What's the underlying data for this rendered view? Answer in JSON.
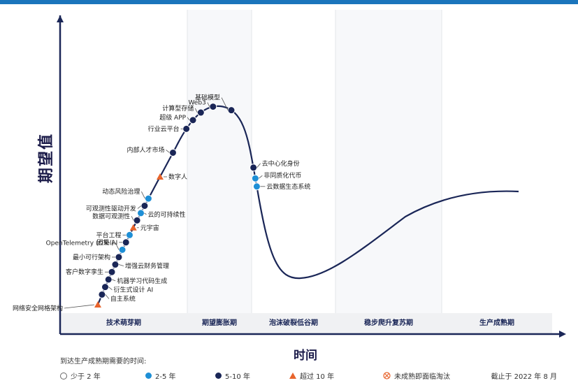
{
  "chart_data": {
    "type": "line",
    "title": "",
    "ylabel": "期望值",
    "xlabel": "时间",
    "phases": [
      "技术萌芽期",
      "期望膨胀期",
      "泡沫破裂低谷期",
      "稳步爬升复苏期",
      "生产成熟期"
    ],
    "legend": {
      "title": "到达生产成熟期需要的时间:",
      "items": [
        {
          "key": "lt2",
          "label": "少于 2 年",
          "color": "#ffffff"
        },
        {
          "key": "2to5",
          "label": "2-5 年",
          "color": "#1e8fd6"
        },
        {
          "key": "5to10",
          "label": "5-10 年",
          "color": "#1a2657"
        },
        {
          "key": "gt10",
          "label": "超过 10 年",
          "color": "#e8642c"
        },
        {
          "key": "obsolete",
          "label": "未成熟即面临淘汰",
          "color": "#e8642c"
        }
      ],
      "as_of": "截止于 2022 年 8 月"
    },
    "technologies": [
      {
        "name": "网络安全网格架构",
        "t": 0.0,
        "category": "gt10"
      },
      {
        "name": "自主系统",
        "t": 0.04,
        "category": "5to10"
      },
      {
        "name": "衍生式设计 AI",
        "t": 0.07,
        "category": "5to10"
      },
      {
        "name": "机器学习代码生成",
        "t": 0.1,
        "category": "5to10"
      },
      {
        "name": "客户数字孪生",
        "t": 0.13,
        "category": "5to10"
      },
      {
        "name": "增强云财务管理",
        "t": 0.16,
        "category": "5to10"
      },
      {
        "name": "最小可行架构",
        "t": 0.19,
        "category": "5to10"
      },
      {
        "name": "OpenTelemetry (OTel)",
        "t": 0.22,
        "category": "2to5"
      },
      {
        "name": "因果 AI",
        "t": 0.25,
        "category": "5to10"
      },
      {
        "name": "平台工程",
        "t": 0.28,
        "category": "2to5"
      },
      {
        "name": "元宇宙",
        "t": 0.31,
        "category": "gt10"
      },
      {
        "name": "数据可观测性",
        "t": 0.34,
        "category": "5to10"
      },
      {
        "name": "云的可持续性",
        "t": 0.37,
        "category": "2to5"
      },
      {
        "name": "可观测性驱动开发",
        "t": 0.4,
        "category": "5to10"
      },
      {
        "name": "动态风险治理",
        "t": 0.43,
        "category": "2to5"
      },
      {
        "name": "数字人",
        "t": 0.52,
        "category": "gt10"
      },
      {
        "name": "内部人才市场",
        "t": 0.62,
        "category": "5to10"
      },
      {
        "name": "行业云平台",
        "t": 0.72,
        "category": "5to10"
      },
      {
        "name": "超级 APP",
        "t": 0.76,
        "category": "5to10"
      },
      {
        "name": "计算型存储",
        "t": 0.8,
        "category": "5to10"
      },
      {
        "name": "Web3",
        "t": 0.85,
        "category": "5to10"
      },
      {
        "name": "基础模型",
        "t": 0.92,
        "category": "5to10"
      },
      {
        "name": "去中心化身份",
        "t": 1.15,
        "category": "5to10"
      },
      {
        "name": "非同质化代币",
        "t": 1.19,
        "category": "2to5"
      },
      {
        "name": "云数据生态系统",
        "t": 1.22,
        "category": "2to5"
      }
    ]
  }
}
